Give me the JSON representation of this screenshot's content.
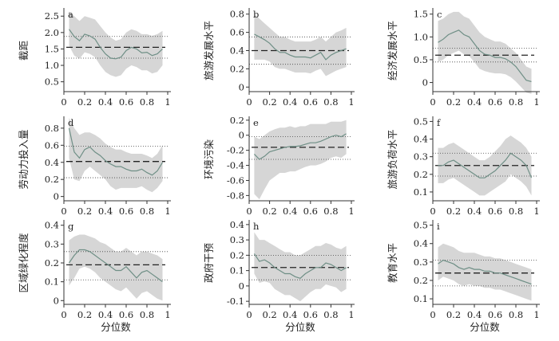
{
  "chart_data": [
    {
      "type": "line",
      "panel_label": "a",
      "ylabel": "截距",
      "xlabel": "",
      "ylim": [
        0.2,
        2.7
      ],
      "yticks": [
        "0.5",
        "1.0",
        "1.5",
        "2.0",
        "2.5"
      ],
      "xticks": [
        "0",
        "0.2",
        "0.4",
        "0.6",
        "0.8",
        "1"
      ],
      "x": [
        0.05,
        0.1,
        0.15,
        0.2,
        0.25,
        0.3,
        0.35,
        0.4,
        0.45,
        0.5,
        0.55,
        0.6,
        0.65,
        0.7,
        0.75,
        0.8,
        0.85,
        0.9,
        0.95
      ],
      "estimate": [
        2.1,
        1.88,
        1.75,
        1.95,
        1.9,
        1.8,
        1.55,
        1.35,
        1.22,
        1.2,
        1.25,
        1.45,
        1.55,
        1.5,
        1.38,
        1.4,
        1.3,
        1.35,
        1.5
      ],
      "ci_upper": [
        2.65,
        2.5,
        2.35,
        2.5,
        2.45,
        2.4,
        2.2,
        2.0,
        1.85,
        1.75,
        1.8,
        2.0,
        2.1,
        2.05,
        1.95,
        1.95,
        1.9,
        1.95,
        2.05
      ],
      "ci_lower": [
        1.6,
        1.3,
        1.2,
        1.4,
        1.35,
        1.25,
        1.0,
        0.8,
        0.7,
        0.65,
        0.7,
        0.9,
        1.0,
        0.95,
        0.85,
        0.85,
        0.75,
        0.8,
        1.0
      ],
      "ols": 1.55,
      "ols_ci": [
        1.22,
        1.88
      ]
    },
    {
      "type": "line",
      "panel_label": "b",
      "ylabel": "旅游发展水平",
      "xlabel": "",
      "ylim": [
        -0.05,
        0.85
      ],
      "yticks": [
        "0",
        "0.2",
        "0.4",
        "0.6",
        "0.8"
      ],
      "xticks": [
        "0",
        "0.2",
        "0.4",
        "0.6",
        "0.8",
        "1"
      ],
      "x": [
        0.05,
        0.1,
        0.15,
        0.2,
        0.25,
        0.3,
        0.35,
        0.4,
        0.45,
        0.5,
        0.55,
        0.6,
        0.65,
        0.7,
        0.75,
        0.8,
        0.85,
        0.9,
        0.95
      ],
      "estimate": [
        0.58,
        0.55,
        0.52,
        0.48,
        0.42,
        0.38,
        0.38,
        0.35,
        0.33,
        0.33,
        0.33,
        0.32,
        0.35,
        0.38,
        0.3,
        0.35,
        0.38,
        0.4,
        0.42
      ],
      "ci_upper": [
        0.8,
        0.75,
        0.7,
        0.65,
        0.6,
        0.55,
        0.55,
        0.52,
        0.5,
        0.5,
        0.5,
        0.5,
        0.52,
        0.55,
        0.5,
        0.55,
        0.6,
        0.62,
        0.65
      ],
      "ci_lower": [
        0.3,
        0.3,
        0.3,
        0.28,
        0.22,
        0.2,
        0.2,
        0.18,
        0.16,
        0.16,
        0.16,
        0.15,
        0.18,
        0.2,
        0.12,
        0.15,
        0.18,
        0.2,
        0.22
      ],
      "ols": 0.4,
      "ols_ci": [
        0.25,
        0.55
      ]
    },
    {
      "type": "line",
      "panel_label": "c",
      "ylabel": "经济发展水平",
      "xlabel": "",
      "ylim": [
        -0.2,
        1.6
      ],
      "yticks": [
        "0",
        "0.5",
        "1.0",
        "1.5"
      ],
      "xticks": [
        "0",
        "0.2",
        "0.4",
        "0.6",
        "0.8",
        "1"
      ],
      "x": [
        0.05,
        0.1,
        0.15,
        0.2,
        0.25,
        0.3,
        0.35,
        0.4,
        0.45,
        0.5,
        0.55,
        0.6,
        0.65,
        0.7,
        0.75,
        0.8,
        0.85,
        0.9,
        0.95
      ],
      "estimate": [
        0.88,
        0.95,
        1.05,
        1.1,
        1.15,
        1.05,
        1.0,
        0.85,
        0.7,
        0.62,
        0.6,
        0.55,
        0.55,
        0.52,
        0.45,
        0.35,
        0.2,
        0.05,
        0.02
      ],
      "ci_upper": [
        1.35,
        1.4,
        1.5,
        1.55,
        1.55,
        1.45,
        1.4,
        1.25,
        1.1,
        1.0,
        0.95,
        0.9,
        0.9,
        0.85,
        0.75,
        0.65,
        0.5,
        0.35,
        0.3
      ],
      "ci_lower": [
        0.45,
        0.5,
        0.6,
        0.65,
        0.7,
        0.62,
        0.58,
        0.45,
        0.3,
        0.25,
        0.22,
        0.2,
        0.2,
        0.18,
        0.12,
        0.02,
        -0.1,
        -0.22,
        -0.25
      ],
      "ols": 0.6,
      "ols_ci": [
        0.45,
        0.75
      ]
    },
    {
      "type": "line",
      "panel_label": "d",
      "ylabel": "劳动力投入量",
      "xlabel": "",
      "ylim": [
        -0.05,
        0.92
      ],
      "yticks": [
        "0",
        "0.2",
        "0.4",
        "0.6",
        "0.8"
      ],
      "xticks": [
        "0",
        "0.2",
        "0.4",
        "0.6",
        "0.8",
        "1"
      ],
      "x": [
        0.05,
        0.1,
        0.15,
        0.2,
        0.25,
        0.3,
        0.35,
        0.4,
        0.45,
        0.5,
        0.55,
        0.6,
        0.65,
        0.7,
        0.75,
        0.8,
        0.85,
        0.9,
        0.95
      ],
      "estimate": [
        0.8,
        0.52,
        0.45,
        0.55,
        0.58,
        0.52,
        0.48,
        0.42,
        0.38,
        0.35,
        0.35,
        0.32,
        0.3,
        0.3,
        0.32,
        0.28,
        0.25,
        0.3,
        0.4
      ],
      "ci_upper": [
        0.92,
        0.8,
        0.72,
        0.75,
        0.75,
        0.72,
        0.68,
        0.62,
        0.58,
        0.55,
        0.55,
        0.52,
        0.5,
        0.5,
        0.5,
        0.48,
        0.45,
        0.5,
        0.6
      ],
      "ci_lower": [
        0.45,
        0.2,
        0.18,
        0.3,
        0.35,
        0.3,
        0.25,
        0.2,
        0.12,
        0.08,
        0.1,
        0.1,
        0.1,
        0.1,
        0.12,
        0.08,
        0.05,
        0.1,
        0.18
      ],
      "ols": 0.41,
      "ols_ci": [
        0.22,
        0.59
      ]
    },
    {
      "type": "line",
      "panel_label": "e",
      "ylabel": "环境污染",
      "xlabel": "",
      "ylim": [
        -0.87,
        0.23
      ],
      "yticks": [
        "-0.8",
        "-0.6",
        "-0.4",
        "-0.2",
        "0",
        "0.2"
      ],
      "xticks": [
        "0",
        "0.2",
        "0.4",
        "0.6",
        "0.8",
        "1"
      ],
      "x": [
        0.05,
        0.1,
        0.15,
        0.2,
        0.25,
        0.3,
        0.35,
        0.4,
        0.45,
        0.5,
        0.55,
        0.6,
        0.65,
        0.7,
        0.75,
        0.8,
        0.85,
        0.9,
        0.95
      ],
      "estimate": [
        -0.25,
        -0.32,
        -0.28,
        -0.22,
        -0.2,
        -0.18,
        -0.16,
        -0.15,
        -0.15,
        -0.14,
        -0.12,
        -0.1,
        -0.1,
        -0.08,
        -0.05,
        -0.02,
        0.0,
        -0.02,
        0.02
      ],
      "ci_upper": [
        -0.02,
        -0.05,
        0.0,
        0.05,
        0.08,
        0.1,
        0.1,
        0.12,
        0.1,
        0.12,
        0.12,
        0.15,
        0.15,
        0.15,
        0.15,
        0.18,
        0.18,
        0.18,
        0.2
      ],
      "ci_lower": [
        -0.78,
        -0.85,
        -0.72,
        -0.6,
        -0.55,
        -0.5,
        -0.5,
        -0.48,
        -0.48,
        -0.45,
        -0.42,
        -0.4,
        -0.4,
        -0.38,
        -0.35,
        -0.3,
        -0.28,
        -0.3,
        -0.25
      ],
      "ols": -0.16,
      "ols_ci": [
        -0.32,
        -0.02
      ]
    },
    {
      "type": "line",
      "panel_label": "f",
      "ylabel": "旅游负荷水平",
      "xlabel": "",
      "ylim": [
        0.05,
        0.52
      ],
      "yticks": [
        "0.1",
        "0.2",
        "0.3",
        "0.4",
        "0.5"
      ],
      "xticks": [
        "0",
        "0.2",
        "0.4",
        "0.6",
        "0.8",
        "1"
      ],
      "x": [
        0.05,
        0.1,
        0.15,
        0.2,
        0.25,
        0.3,
        0.35,
        0.4,
        0.45,
        0.5,
        0.55,
        0.6,
        0.65,
        0.7,
        0.75,
        0.8,
        0.85,
        0.9,
        0.95
      ],
      "estimate": [
        0.25,
        0.25,
        0.27,
        0.28,
        0.26,
        0.24,
        0.22,
        0.2,
        0.18,
        0.18,
        0.2,
        0.22,
        0.25,
        0.28,
        0.32,
        0.3,
        0.28,
        0.25,
        0.18
      ],
      "ci_upper": [
        0.35,
        0.35,
        0.37,
        0.38,
        0.36,
        0.34,
        0.32,
        0.3,
        0.28,
        0.28,
        0.3,
        0.33,
        0.36,
        0.4,
        0.42,
        0.4,
        0.38,
        0.35,
        0.3
      ],
      "ci_lower": [
        0.15,
        0.15,
        0.17,
        0.18,
        0.16,
        0.14,
        0.12,
        0.1,
        0.08,
        0.08,
        0.1,
        0.12,
        0.14,
        0.16,
        0.2,
        0.18,
        0.16,
        0.13,
        0.08
      ],
      "ols": 0.25,
      "ols_ci": [
        0.19,
        0.32
      ]
    },
    {
      "type": "line",
      "panel_label": "g",
      "ylabel": "区域绿化程度",
      "xlabel": "分位数",
      "ylim": [
        -0.02,
        0.42
      ],
      "yticks": [
        "0",
        "0.1",
        "0.2",
        "0.3",
        "0.4"
      ],
      "xticks": [
        "0",
        "0.2",
        "0.4",
        "0.6",
        "0.8",
        "1"
      ],
      "x": [
        0.05,
        0.1,
        0.15,
        0.2,
        0.25,
        0.3,
        0.35,
        0.4,
        0.45,
        0.5,
        0.55,
        0.6,
        0.65,
        0.7,
        0.75,
        0.8,
        0.85,
        0.9,
        0.95
      ],
      "estimate": [
        0.2,
        0.24,
        0.27,
        0.27,
        0.26,
        0.24,
        0.22,
        0.2,
        0.18,
        0.16,
        0.16,
        0.18,
        0.15,
        0.12,
        0.15,
        0.16,
        0.14,
        0.12,
        0.1
      ],
      "ci_upper": [
        0.32,
        0.34,
        0.35,
        0.35,
        0.34,
        0.33,
        0.31,
        0.3,
        0.28,
        0.26,
        0.26,
        0.28,
        0.26,
        0.24,
        0.26,
        0.26,
        0.25,
        0.24,
        0.22
      ],
      "ci_lower": [
        0.08,
        0.12,
        0.17,
        0.18,
        0.17,
        0.15,
        0.12,
        0.1,
        0.08,
        0.06,
        0.05,
        0.07,
        0.04,
        0.01,
        0.04,
        0.05,
        0.03,
        0.01,
        0.0
      ],
      "ols": 0.19,
      "ols_ci": [
        0.11,
        0.26
      ]
    },
    {
      "type": "line",
      "panel_label": "h",
      "ylabel": "政府干预",
      "xlabel": "分位数",
      "ylim": [
        -0.12,
        0.42
      ],
      "yticks": [
        "-0.1",
        "0",
        "0.1",
        "0.2",
        "0.3",
        "0.4"
      ],
      "xticks": [
        "0",
        "0.2",
        "0.4",
        "0.6",
        "0.8",
        "1"
      ],
      "x": [
        0.05,
        0.1,
        0.15,
        0.2,
        0.25,
        0.3,
        0.35,
        0.4,
        0.45,
        0.5,
        0.55,
        0.6,
        0.65,
        0.7,
        0.75,
        0.8,
        0.85,
        0.9,
        0.95
      ],
      "estimate": [
        0.21,
        0.16,
        0.17,
        0.15,
        0.12,
        0.1,
        0.08,
        0.08,
        0.06,
        0.05,
        0.08,
        0.1,
        0.12,
        0.12,
        0.15,
        0.14,
        0.12,
        0.1,
        0.12
      ],
      "ci_upper": [
        0.35,
        0.3,
        0.3,
        0.28,
        0.26,
        0.24,
        0.22,
        0.22,
        0.2,
        0.2,
        0.22,
        0.24,
        0.26,
        0.26,
        0.28,
        0.27,
        0.25,
        0.24,
        0.26
      ],
      "ci_lower": [
        0.08,
        0.02,
        0.03,
        0.02,
        -0.02,
        -0.04,
        -0.06,
        -0.06,
        -0.08,
        -0.1,
        -0.07,
        -0.04,
        -0.02,
        -0.02,
        0.01,
        0.0,
        -0.01,
        -0.04,
        -0.02
      ],
      "ols": 0.12,
      "ols_ci": [
        0.04,
        0.2
      ]
    },
    {
      "type": "line",
      "panel_label": "i",
      "ylabel": "教育水平",
      "xlabel": "分位数",
      "ylim": [
        0.07,
        0.52
      ],
      "yticks": [
        "0.1",
        "0.2",
        "0.3",
        "0.4",
        "0.5"
      ],
      "xticks": [
        "0",
        "0.2",
        "0.4",
        "0.6",
        "0.8",
        "1"
      ],
      "x": [
        0.05,
        0.1,
        0.15,
        0.2,
        0.25,
        0.3,
        0.35,
        0.4,
        0.45,
        0.5,
        0.55,
        0.6,
        0.65,
        0.7,
        0.75,
        0.8,
        0.85,
        0.9,
        0.95
      ],
      "estimate": [
        0.29,
        0.31,
        0.3,
        0.29,
        0.27,
        0.26,
        0.27,
        0.26,
        0.26,
        0.25,
        0.25,
        0.24,
        0.24,
        0.23,
        0.22,
        0.21,
        0.2,
        0.19,
        0.18
      ],
      "ci_upper": [
        0.38,
        0.4,
        0.39,
        0.38,
        0.36,
        0.35,
        0.35,
        0.35,
        0.34,
        0.33,
        0.33,
        0.32,
        0.32,
        0.31,
        0.3,
        0.29,
        0.28,
        0.27,
        0.26
      ],
      "ci_lower": [
        0.2,
        0.22,
        0.21,
        0.2,
        0.18,
        0.17,
        0.18,
        0.17,
        0.17,
        0.16,
        0.16,
        0.15,
        0.15,
        0.14,
        0.13,
        0.12,
        0.11,
        0.1,
        0.09
      ],
      "ols": 0.24,
      "ols_ci": [
        0.17,
        0.31
      ]
    }
  ],
  "colors": {
    "band": "#d6d6d6",
    "estimate": "#6f8f86",
    "ols": "#222222",
    "ols_ci": "#444444",
    "axis": "#333333"
  }
}
